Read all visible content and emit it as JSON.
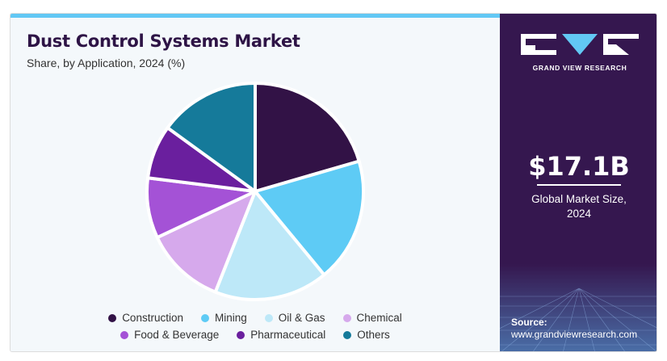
{
  "header": {
    "title": "Dust Control Systems Market",
    "subtitle": "Share, by Application, 2024 (%)"
  },
  "sidebar": {
    "brand": "GRAND VIEW RESEARCH",
    "market_value": "$17.1B",
    "market_label_line1": "Global Market Size,",
    "market_label_line2": "2024",
    "source_label": "Source:",
    "source_url": "www.grandviewresearch.com"
  },
  "colors": {
    "accent": "#62c8f4",
    "sidebar_bg": "#35174f"
  },
  "chart_data": {
    "type": "pie",
    "title": "Dust Control Systems Market",
    "subtitle": "Share, by Application, 2024 (%)",
    "legend_position": "bottom",
    "categories": [
      "Construction",
      "Mining",
      "Oil & Gas",
      "Chemical",
      "Food & Beverage",
      "Pharmaceutical",
      "Others"
    ],
    "values": [
      20.5,
      18.5,
      17.0,
      12.0,
      9.0,
      8.0,
      15.0
    ],
    "colors": [
      "#321246",
      "#5ecbf5",
      "#bde8f8",
      "#d6a9ec",
      "#a452d6",
      "#6a1f9e",
      "#157a9a"
    ]
  }
}
